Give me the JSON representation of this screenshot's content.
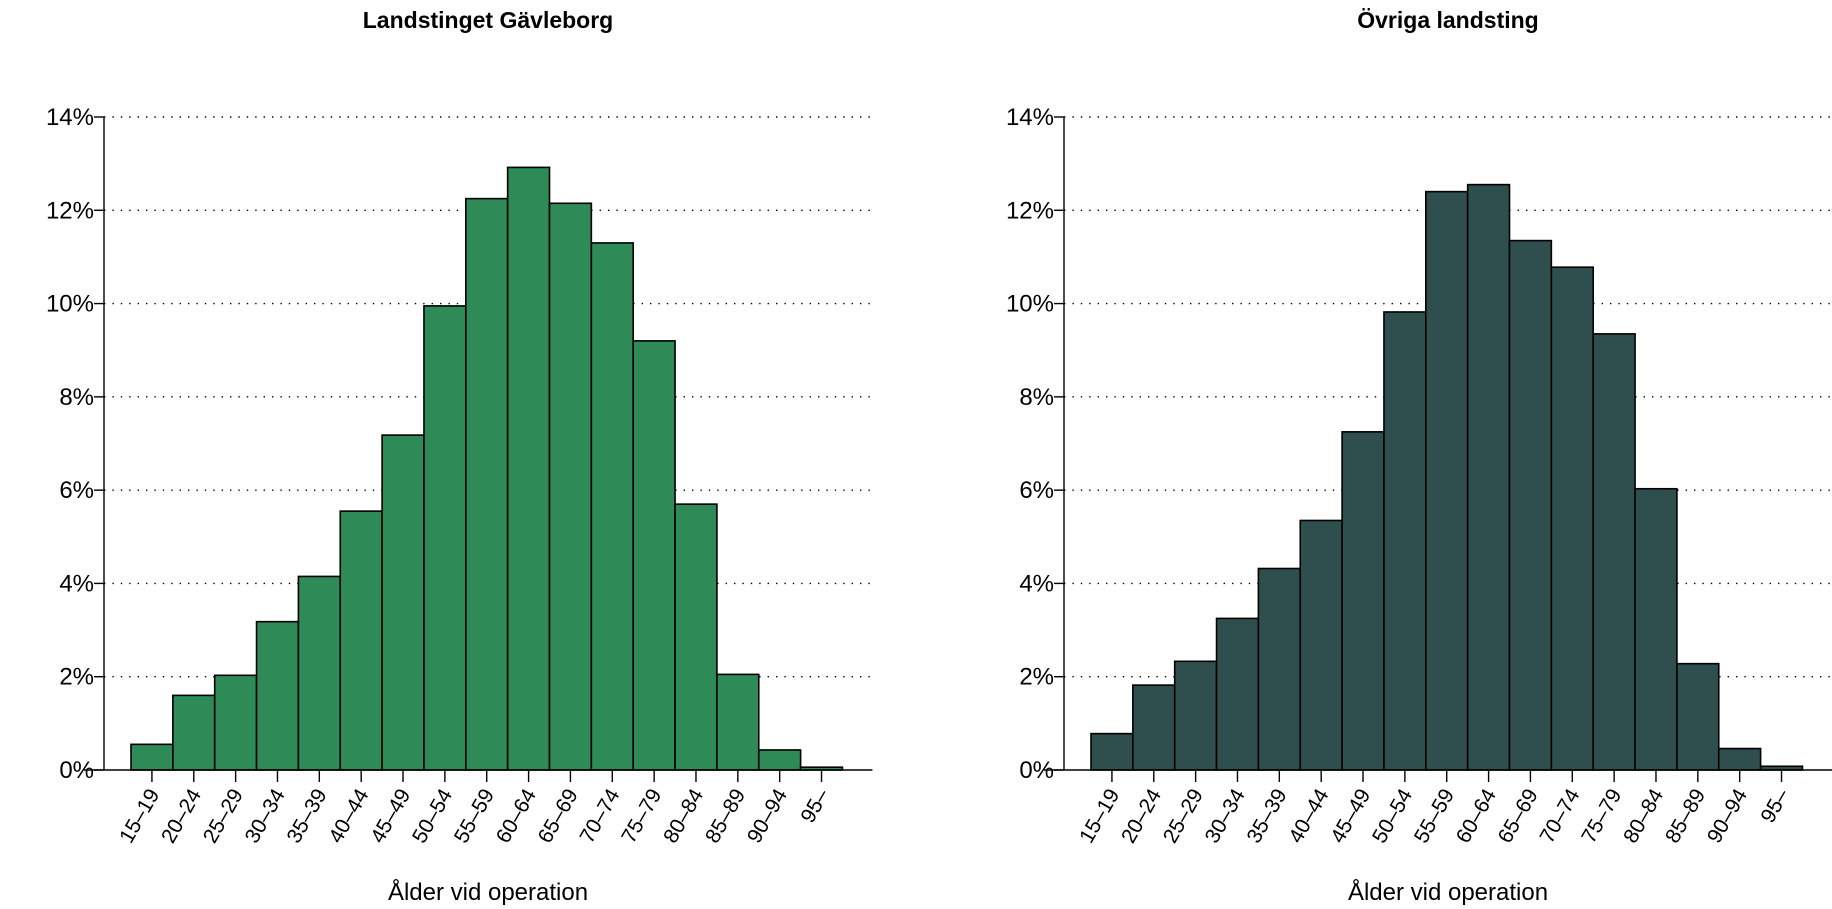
{
  "chart_data": [
    {
      "type": "bar",
      "title": "Landstinget Gävleborg",
      "xlabel": "Ålder vid operation",
      "ylabel": "",
      "ylim": [
        0,
        14
      ],
      "yticks": [
        "0%",
        "2%",
        "4%",
        "6%",
        "8%",
        "10%",
        "12%",
        "14%"
      ],
      "grid": "dotted horizontal",
      "color": "#2e8b57",
      "categories": [
        "15–19",
        "20–24",
        "25–29",
        "30–34",
        "35–39",
        "40–44",
        "45–49",
        "50–54",
        "55–59",
        "60–64",
        "65–69",
        "70–74",
        "75–79",
        "80–84",
        "85–89",
        "90–94",
        "95–"
      ],
      "values": [
        0.55,
        1.6,
        2.03,
        3.18,
        4.15,
        5.55,
        7.18,
        9.95,
        12.25,
        12.92,
        12.15,
        11.3,
        9.2,
        5.7,
        2.05,
        0.43,
        0.06
      ]
    },
    {
      "type": "bar",
      "title": "Övriga landsting",
      "xlabel": "Ålder vid operation",
      "ylabel": "",
      "ylim": [
        0,
        14
      ],
      "yticks": [
        "0%",
        "2%",
        "4%",
        "6%",
        "8%",
        "10%",
        "12%",
        "14%"
      ],
      "grid": "dotted horizontal",
      "color": "#2f4f4f",
      "categories": [
        "15–19",
        "20–24",
        "25–29",
        "30–34",
        "35–39",
        "40–44",
        "45–49",
        "50–54",
        "55–59",
        "60–64",
        "65–69",
        "70–74",
        "75–79",
        "80–84",
        "85–89",
        "90–94",
        "95–"
      ],
      "values": [
        0.78,
        1.82,
        2.33,
        3.25,
        4.32,
        5.35,
        7.25,
        9.82,
        12.4,
        12.55,
        11.35,
        10.78,
        9.35,
        6.03,
        2.28,
        0.46,
        0.08
      ]
    }
  ]
}
